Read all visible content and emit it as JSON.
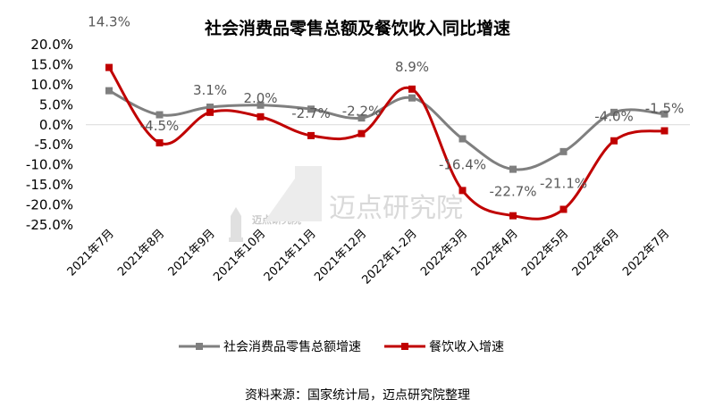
{
  "chart_data": {
    "type": "line",
    "title": "社会消费品零售总额及餐饮收入同比增速",
    "categories": [
      "2021年7月",
      "2021年8月",
      "2021年9月",
      "2021年10月",
      "2021年11月",
      "2021年12月",
      "2022年1-2月",
      "2022年3月",
      "2022年4月",
      "2022年5月",
      "2022年6月",
      "2022年7月"
    ],
    "y_ticks": [
      "20.0%",
      "15.0%",
      "10.0%",
      "5.0%",
      "0.0%",
      "-5.0%",
      "-10.0%",
      "-15.0%",
      "-20.0%",
      "-25.0%"
    ],
    "ylim": [
      -25,
      20
    ],
    "series": [
      {
        "name": "社会消费品零售总额增速",
        "color": "#7f7f7f",
        "marker": "square",
        "values": [
          8.5,
          2.5,
          4.4,
          4.9,
          3.9,
          1.7,
          6.7,
          -3.5,
          -11.1,
          -6.7,
          3.1,
          2.7
        ]
      },
      {
        "name": "餐饮收入增速",
        "color": "#c00000",
        "marker": "square",
        "values": [
          14.3,
          -4.5,
          3.1,
          2.0,
          -2.7,
          -2.2,
          8.9,
          -16.4,
          -22.7,
          -21.1,
          -4.0,
          -1.5
        ]
      }
    ],
    "data_labels": [
      "14.3%",
      "-4.5%",
      "3.1%",
      "2.0%",
      "-2.7%",
      "-2.2%",
      "8.9%",
      "-16.4%",
      "-22.7%",
      "-21.1%",
      "-4.0%",
      "-1.5%"
    ],
    "legend_position": "bottom",
    "grid": false
  },
  "source_text": "资料来源：国家统计局，迈点研究院整理",
  "watermark": {
    "text": "迈点研究院",
    "logo_text": "迈点研究院"
  }
}
